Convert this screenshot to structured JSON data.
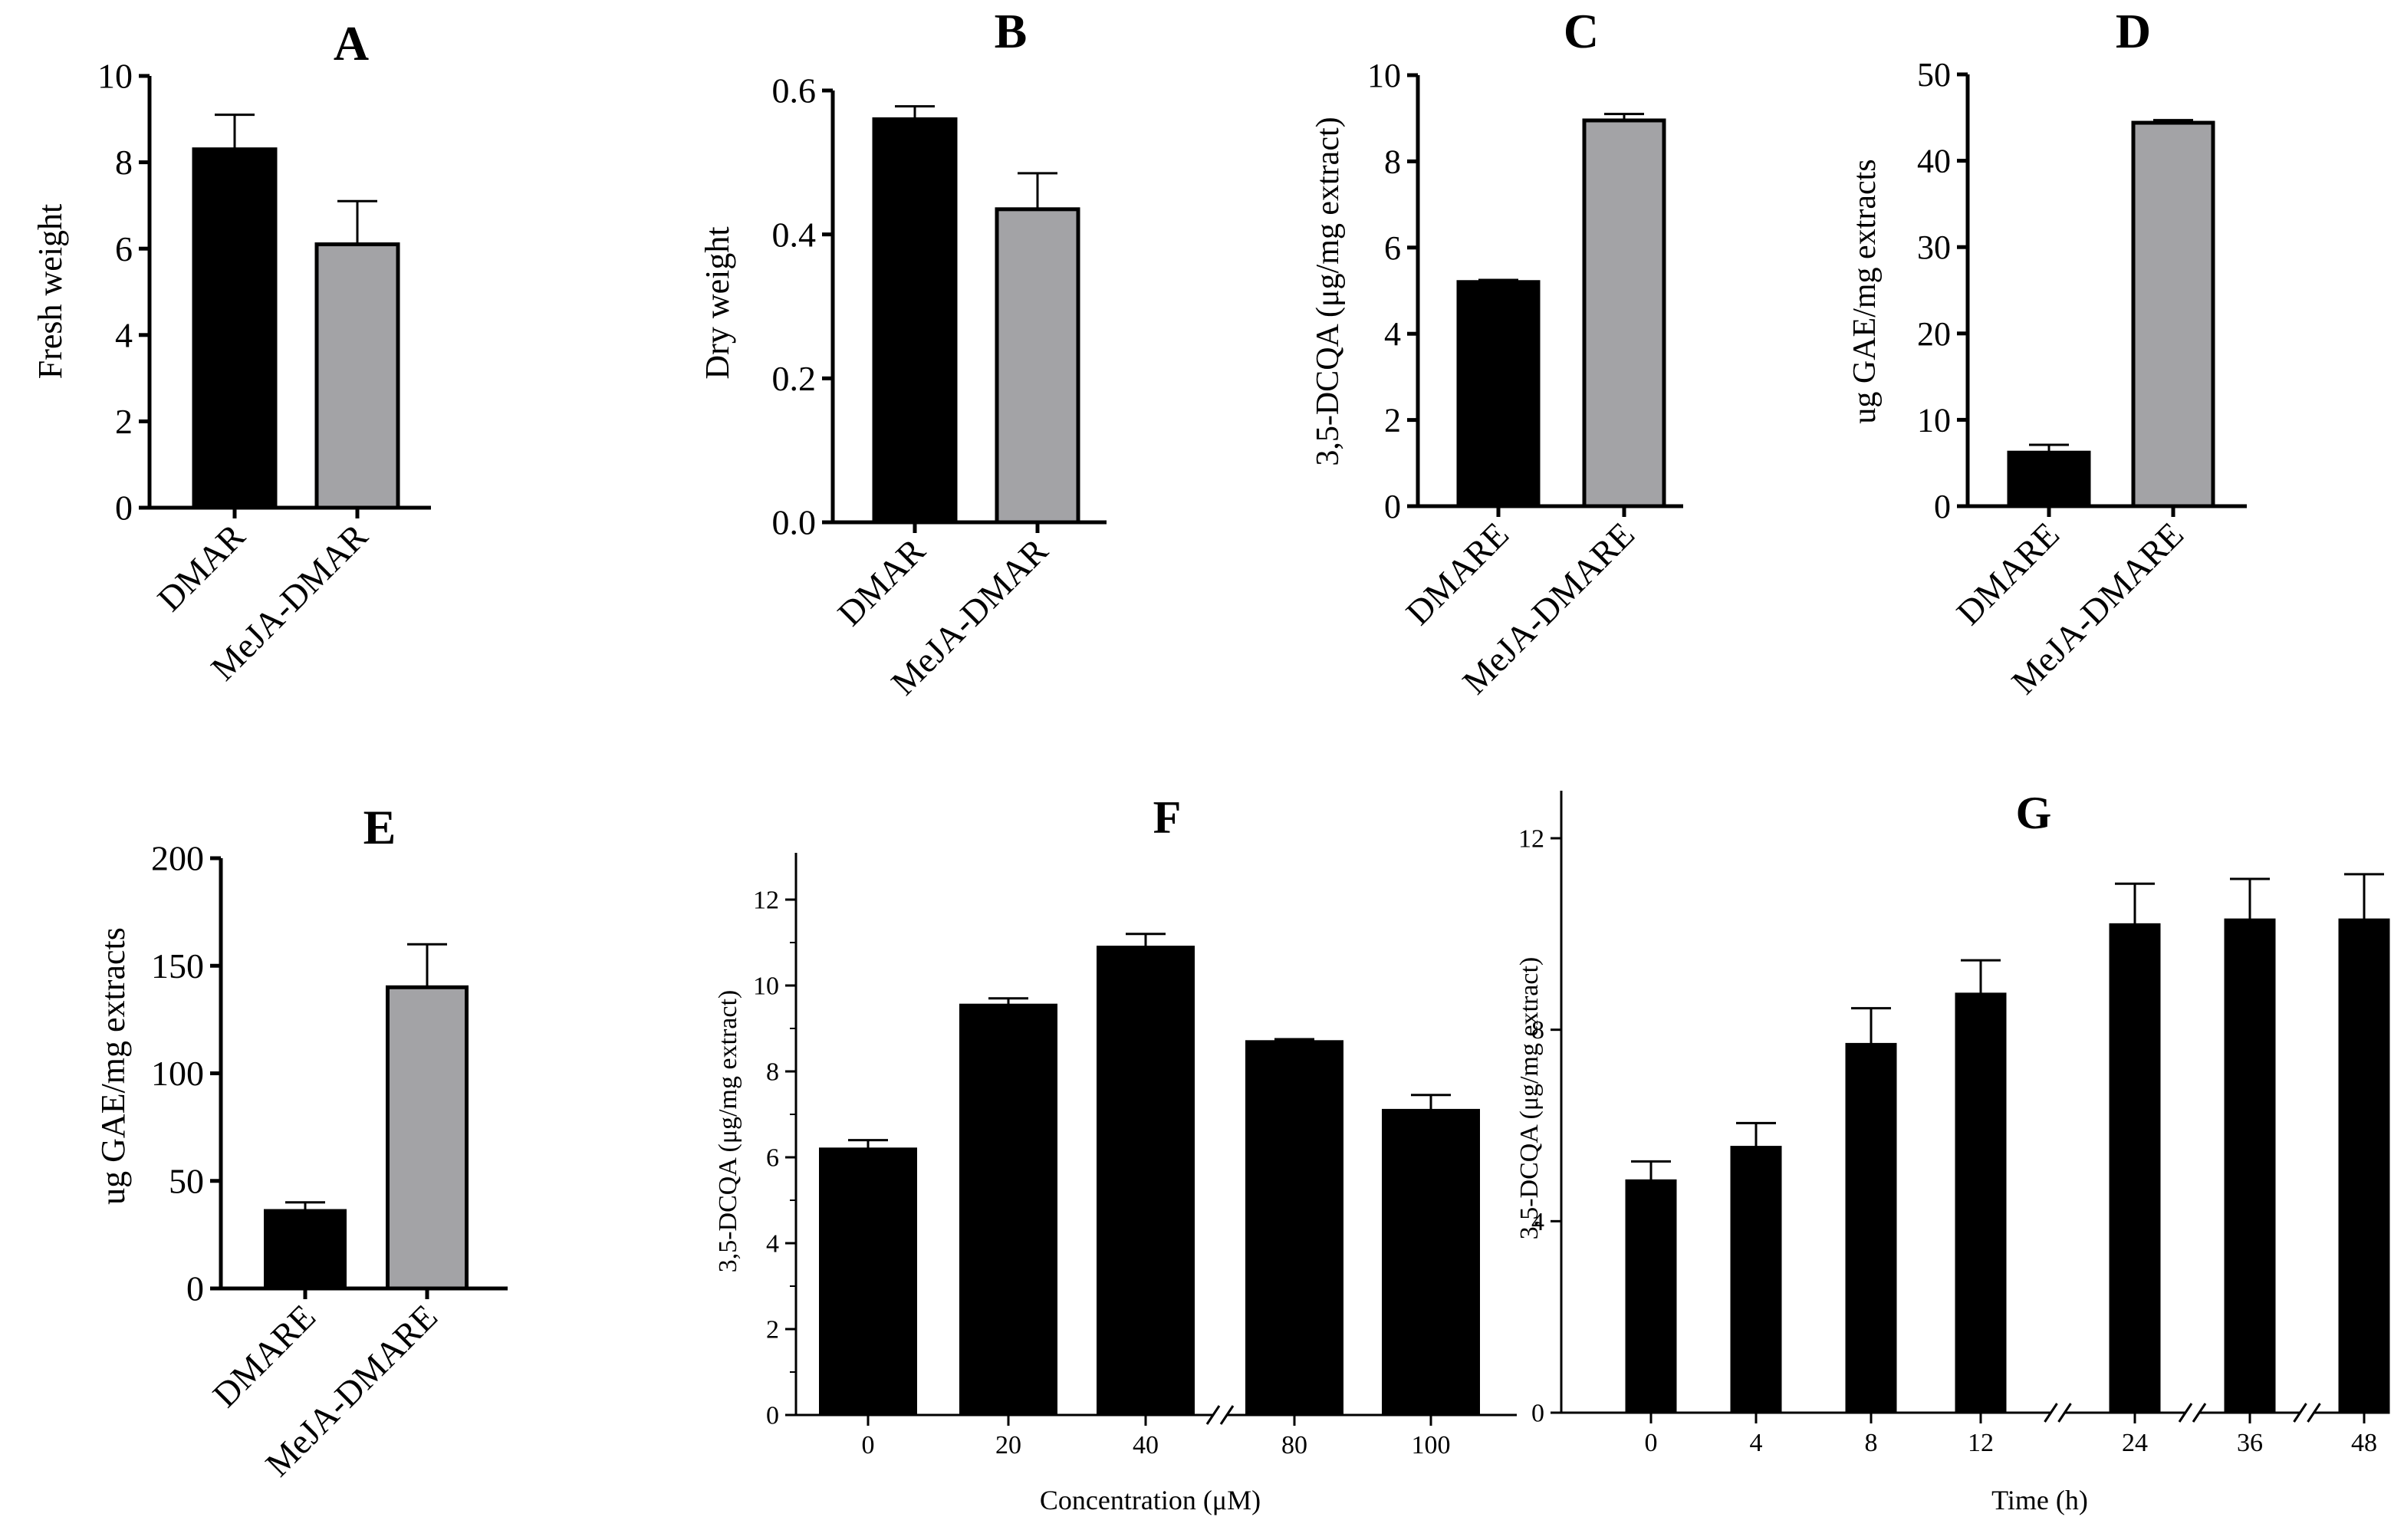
{
  "chart_data": [
    {
      "id": "A",
      "type": "bar",
      "title": "A",
      "categories": [
        "DMAR",
        "MeJA-DMAR"
      ],
      "values": [
        8.3,
        6.1
      ],
      "errors": [
        0.8,
        1.0
      ],
      "ylabel": "Fresh weight",
      "xlabel": "",
      "ylim": [
        0,
        10
      ],
      "yticks": [
        "0",
        "2",
        "4",
        "6",
        "8",
        "10"
      ],
      "colors": [
        "#000000",
        "#a3a3a6"
      ]
    },
    {
      "id": "B",
      "type": "bar",
      "title": "B",
      "categories": [
        "DMAR",
        "MeJA-DMAR"
      ],
      "values": [
        0.56,
        0.435
      ],
      "errors": [
        0.018,
        0.05
      ],
      "ylabel": "Dry weight",
      "xlabel": "",
      "ylim": [
        0,
        0.6
      ],
      "yticks": [
        "0.0",
        "0.2",
        "0.4",
        "0.6"
      ],
      "colors": [
        "#000000",
        "#a3a3a6"
      ]
    },
    {
      "id": "C",
      "type": "bar",
      "title": "C",
      "categories": [
        "DMARE",
        "MeJA-DMARE"
      ],
      "values": [
        5.2,
        8.95
      ],
      "errors": [
        0.05,
        0.15
      ],
      "ylabel": "3,5-DCQA (μg/mg extract)",
      "xlabel": "",
      "ylim": [
        0,
        10
      ],
      "yticks": [
        "0",
        "2",
        "4",
        "6",
        "8",
        "10"
      ],
      "colors": [
        "#000000",
        "#a3a3a6"
      ]
    },
    {
      "id": "D",
      "type": "bar",
      "title": "D",
      "categories": [
        "DMARE",
        "MeJA-DMARE"
      ],
      "values": [
        6.2,
        44.4
      ],
      "errors": [
        0.9,
        0.3
      ],
      "ylabel": "ug GAE/mg extracts",
      "xlabel": "",
      "ylim": [
        0,
        50
      ],
      "yticks": [
        "0",
        "10",
        "20",
        "30",
        "40",
        "50"
      ],
      "colors": [
        "#000000",
        "#a3a3a6"
      ]
    },
    {
      "id": "E",
      "type": "bar",
      "title": "E",
      "categories": [
        "DMARE",
        "MeJA-DMARE"
      ],
      "values": [
        36,
        140
      ],
      "errors": [
        4,
        20
      ],
      "ylabel": "ug GAE/mg extracts",
      "xlabel": "",
      "ylim": [
        0,
        200
      ],
      "yticks": [
        "0",
        "50",
        "100",
        "150",
        "200"
      ],
      "colors": [
        "#000000",
        "#a3a3a6"
      ]
    },
    {
      "id": "F",
      "type": "bar",
      "title": "F",
      "categories": [
        "0",
        "20",
        "40",
        "80",
        "100"
      ],
      "values": [
        6.2,
        9.55,
        10.9,
        8.7,
        7.1
      ],
      "errors": [
        0.2,
        0.15,
        0.3,
        0.05,
        0.35
      ],
      "ylabel": "3,5-DCQA (μg/mg extract)",
      "xlabel": "Concentration (μM)",
      "ylim": [
        0,
        13
      ],
      "yticks": [
        "0",
        "2",
        "4",
        "6",
        "8",
        "10",
        "12"
      ],
      "axis_breaks_after": [
        2
      ],
      "colors": [
        "#000000"
      ]
    },
    {
      "id": "G",
      "type": "bar",
      "title": "G",
      "categories": [
        "0",
        "4",
        "8",
        "12",
        "24",
        "36",
        "48"
      ],
      "values": [
        4.85,
        5.55,
        7.7,
        8.75,
        10.2,
        10.3,
        10.3
      ],
      "errors": [
        0.4,
        0.5,
        0.75,
        0.7,
        0.85,
        0.85,
        0.95
      ],
      "ylabel": "3,5-DCQA (μg/mg extract)",
      "xlabel": "Time (h)",
      "ylim": [
        0,
        13
      ],
      "yticks": [
        "0",
        "4",
        "8",
        "12"
      ],
      "axis_breaks_after": [
        3,
        4,
        5
      ],
      "colors": [
        "#000000"
      ]
    }
  ]
}
